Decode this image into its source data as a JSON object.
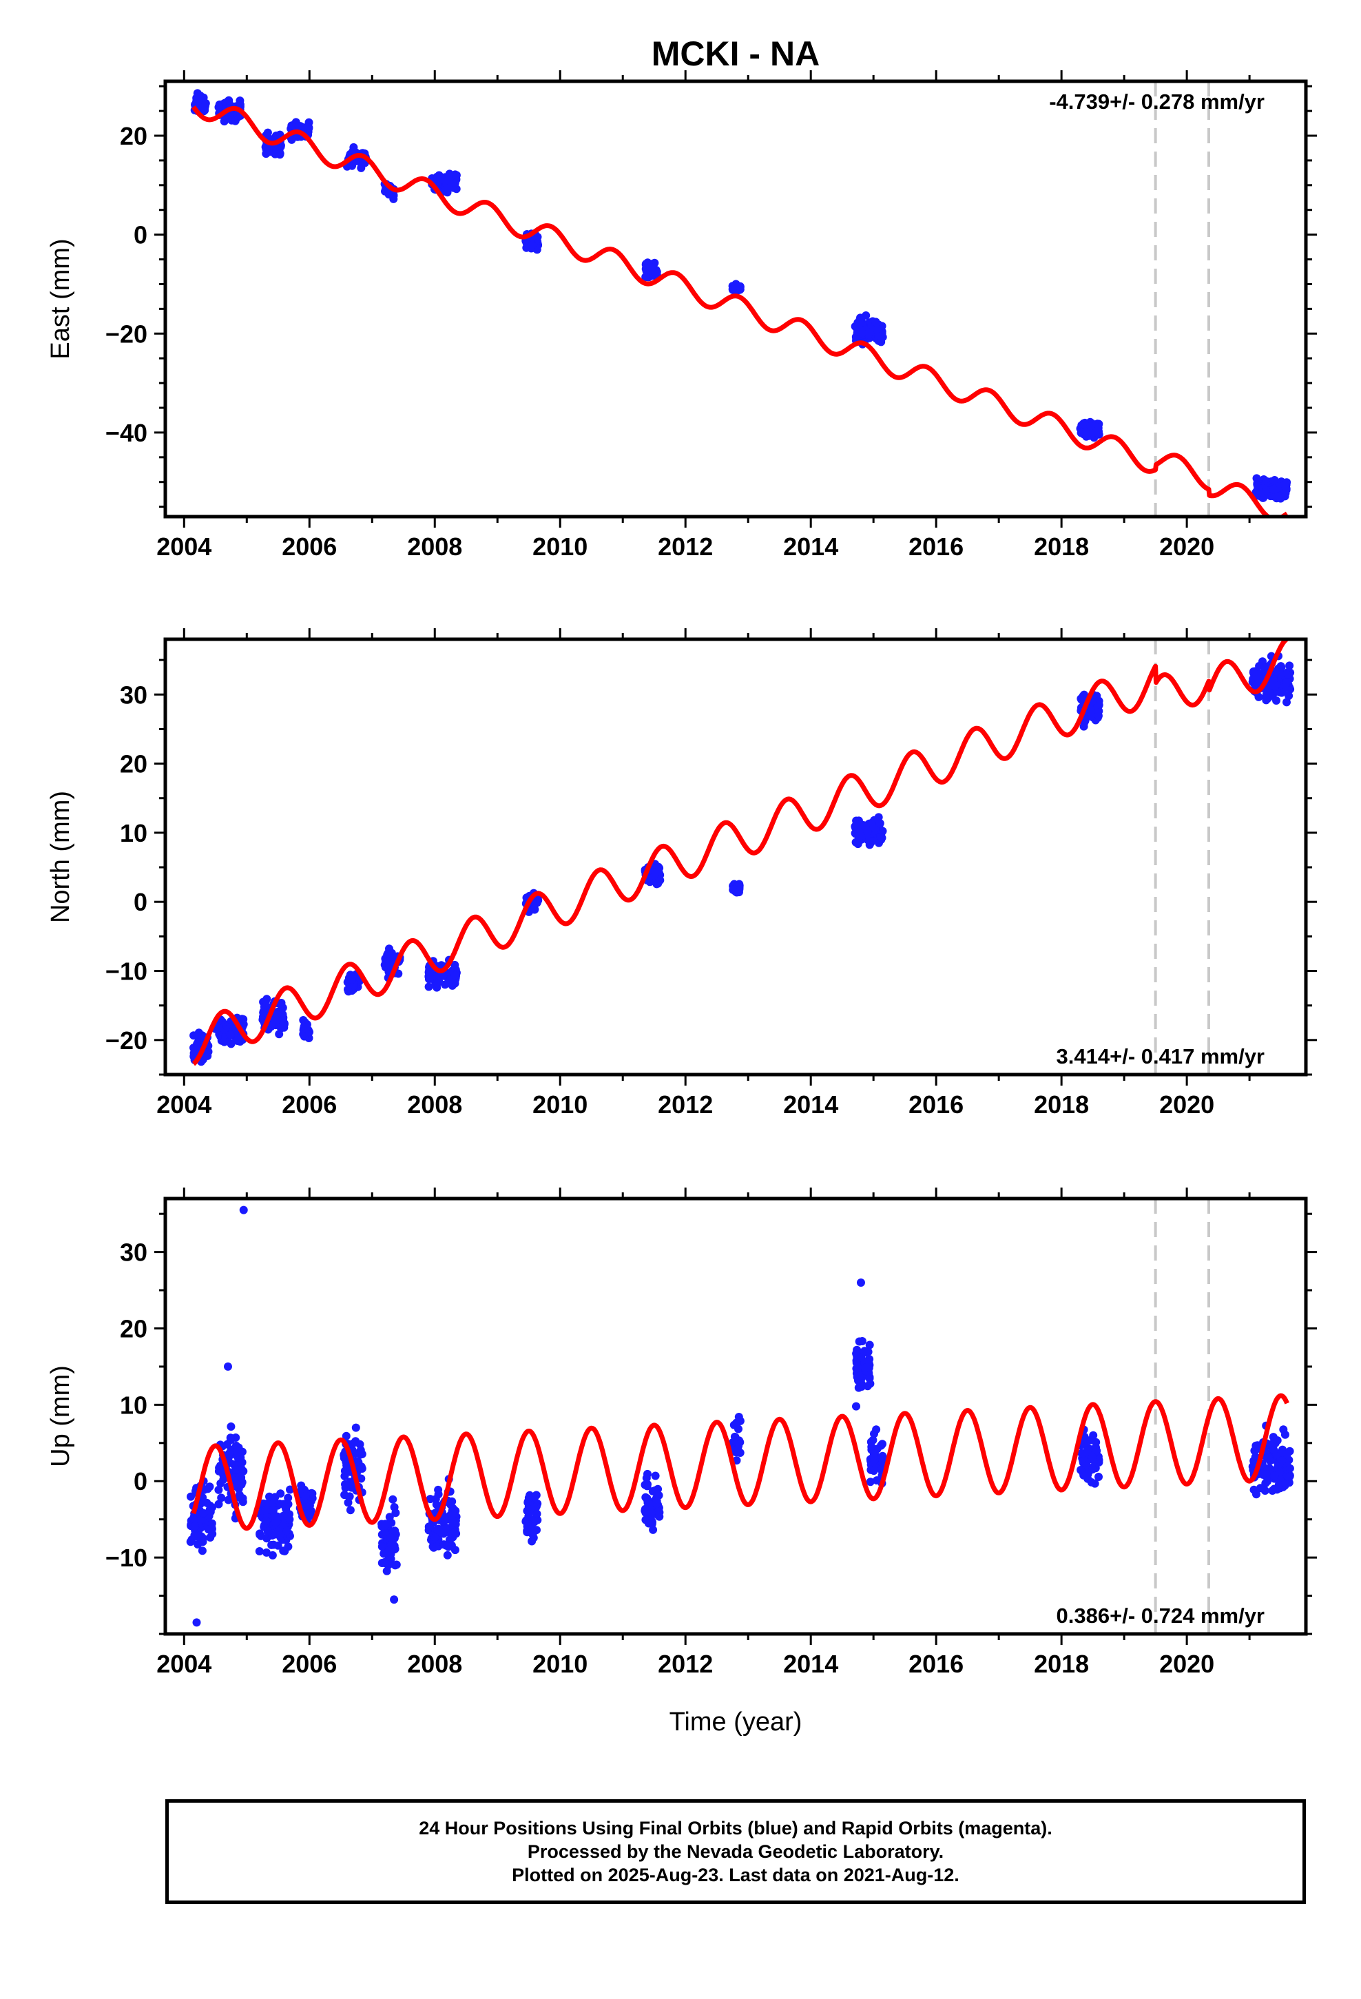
{
  "figure": {
    "title": "MCKI - NA",
    "xlabel": "Time (year)",
    "footer": [
      "24 Hour Positions Using Final Orbits (blue) and Rapid Orbits (magenta).",
      "Processed by the Nevada Geodetic Laboratory.",
      "Plotted on 2025-Aug-23. Last data on 2021-Aug-12."
    ],
    "colors": {
      "data": "#1a1aff",
      "model": "#ff0000",
      "breaks": "#c8c8c8",
      "frame": "#000000"
    }
  },
  "chart_data": [
    {
      "type": "scatter",
      "panel": "east",
      "ylabel": "East (mm)",
      "rate_label": "-4.739+/- 0.278 mm/yr",
      "rate_position": "top-right",
      "xlim": [
        2003.7,
        2021.9
      ],
      "ylim": [
        -57,
        31
      ],
      "xticks": [
        2004,
        2006,
        2008,
        2010,
        2012,
        2014,
        2016,
        2018,
        2020
      ],
      "yticks": [
        -40,
        -20,
        0,
        20
      ],
      "breaks": [
        2019.5,
        2020.35
      ],
      "model": {
        "intercept": 26.5,
        "t0": 2004.15,
        "rate": -4.739,
        "amp": 2.2,
        "phase": 2004.85,
        "offsets": [
          [
            2019.5,
            1.0
          ],
          [
            2020.35,
            -1.2
          ]
        ]
      },
      "campaigns": [
        {
          "t": [
            2004.15,
            2004.35
          ],
          "mean": 26.5,
          "spread": 1.8
        },
        {
          "t": [
            2004.55,
            2004.9
          ],
          "mean": 25.0,
          "spread": 1.8
        },
        {
          "t": [
            2005.3,
            2005.55
          ],
          "mean": 18.5,
          "spread": 2.0
        },
        {
          "t": [
            2005.7,
            2006.0
          ],
          "mean": 21.0,
          "spread": 1.6
        },
        {
          "t": [
            2006.6,
            2006.9
          ],
          "mean": 15.5,
          "spread": 1.6
        },
        {
          "t": [
            2007.2,
            2007.35
          ],
          "mean": 9.0,
          "spread": 1.4
        },
        {
          "t": [
            2007.95,
            2008.35
          ],
          "mean": 10.5,
          "spread": 1.8
        },
        {
          "t": [
            2009.45,
            2009.65
          ],
          "mean": -1.5,
          "spread": 1.5
        },
        {
          "t": [
            2011.35,
            2011.55
          ],
          "mean": -7.5,
          "spread": 1.5
        },
        {
          "t": [
            2012.75,
            2012.88
          ],
          "mean": -11.0,
          "spread": 0.8
        },
        {
          "t": [
            2014.7,
            2015.15
          ],
          "mean": -19.5,
          "spread": 2.5
        },
        {
          "t": [
            2018.3,
            2018.6
          ],
          "mean": -39.5,
          "spread": 1.3
        },
        {
          "t": [
            2021.1,
            2021.6
          ],
          "mean": -51.5,
          "spread": 1.8
        }
      ]
    },
    {
      "type": "scatter",
      "panel": "north",
      "ylabel": "North (mm)",
      "rate_label": "3.414+/- 0.417 mm/yr",
      "rate_position": "bottom-right",
      "xlim": [
        2003.7,
        2021.9
      ],
      "ylim": [
        -25,
        38
      ],
      "xticks": [
        2004,
        2006,
        2008,
        2010,
        2012,
        2014,
        2016,
        2018,
        2020
      ],
      "yticks": [
        -20,
        -10,
        0,
        10,
        20,
        30
      ],
      "breaks": [
        2019.5,
        2020.35
      ],
      "model": {
        "intercept": -20.5,
        "t0": 2004.15,
        "rate": 3.414,
        "amp": 3.0,
        "phase": 2004.62,
        "offsets": [
          [
            2019.5,
            -2.5
          ],
          [
            2020.35,
            -1.5
          ]
        ]
      },
      "campaigns": [
        {
          "t": [
            2004.15,
            2004.4
          ],
          "mean": -21.0,
          "spread": 1.8
        },
        {
          "t": [
            2004.5,
            2004.95
          ],
          "mean": -18.5,
          "spread": 2.0
        },
        {
          "t": [
            2005.25,
            2005.6
          ],
          "mean": -16.5,
          "spread": 2.5
        },
        {
          "t": [
            2005.9,
            2006.0
          ],
          "mean": -18.5,
          "spread": 1.2
        },
        {
          "t": [
            2006.6,
            2006.8
          ],
          "mean": -11.5,
          "spread": 1.5
        },
        {
          "t": [
            2007.2,
            2007.45
          ],
          "mean": -9.0,
          "spread": 1.5
        },
        {
          "t": [
            2007.9,
            2008.35
          ],
          "mean": -10.5,
          "spread": 1.5
        },
        {
          "t": [
            2009.45,
            2009.65
          ],
          "mean": 0.0,
          "spread": 1.2
        },
        {
          "t": [
            2011.35,
            2011.6
          ],
          "mean": 4.0,
          "spread": 1.2
        },
        {
          "t": [
            2012.75,
            2012.88
          ],
          "mean": 2.0,
          "spread": 0.7
        },
        {
          "t": [
            2014.7,
            2015.15
          ],
          "mean": 10.0,
          "spread": 1.8
        },
        {
          "t": [
            2018.3,
            2018.6
          ],
          "mean": 28.0,
          "spread": 2.0
        },
        {
          "t": [
            2021.05,
            2021.65
          ],
          "mean": 32.0,
          "spread": 2.5
        }
      ]
    },
    {
      "type": "scatter",
      "panel": "up",
      "ylabel": "Up (mm)",
      "rate_label": "0.386+/- 0.724 mm/yr",
      "rate_position": "bottom-right",
      "xlim": [
        2003.7,
        2021.9
      ],
      "ylim": [
        -20,
        37
      ],
      "xticks": [
        2004,
        2006,
        2008,
        2010,
        2012,
        2014,
        2016,
        2018,
        2020
      ],
      "yticks": [
        -10,
        0,
        10,
        20,
        30
      ],
      "breaks": [
        2019.5,
        2020.35
      ],
      "model": {
        "intercept": -1.0,
        "t0": 2004.15,
        "rate": 0.386,
        "amp": 5.5,
        "phase": 2004.5,
        "offsets": []
      },
      "campaigns": [
        {
          "t": [
            2004.1,
            2004.45
          ],
          "mean": -4.5,
          "spread": 4.5
        },
        {
          "t": [
            2004.55,
            2004.95
          ],
          "mean": 1.5,
          "spread": 5.0
        },
        {
          "t": [
            2005.2,
            2005.7
          ],
          "mean": -5.5,
          "spread": 3.8
        },
        {
          "t": [
            2005.85,
            2006.05
          ],
          "mean": -2.5,
          "spread": 2.5
        },
        {
          "t": [
            2006.55,
            2006.85
          ],
          "mean": 1.5,
          "spread": 4.0
        },
        {
          "t": [
            2007.15,
            2007.4
          ],
          "mean": -7.5,
          "spread": 4.0
        },
        {
          "t": [
            2007.9,
            2008.35
          ],
          "mean": -5.5,
          "spread": 4.0
        },
        {
          "t": [
            2009.45,
            2009.65
          ],
          "mean": -4.0,
          "spread": 3.5
        },
        {
          "t": [
            2011.35,
            2011.6
          ],
          "mean": -3.0,
          "spread": 3.5
        },
        {
          "t": [
            2012.75,
            2012.88
          ],
          "mean": 5.0,
          "spread": 3.0
        },
        {
          "t": [
            2014.7,
            2014.95
          ],
          "mean": 15.0,
          "spread": 4.5
        },
        {
          "t": [
            2014.95,
            2015.15
          ],
          "mean": 3.0,
          "spread": 3.0
        },
        {
          "t": [
            2018.3,
            2018.6
          ],
          "mean": 3.0,
          "spread": 3.0
        },
        {
          "t": [
            2021.05,
            2021.65
          ],
          "mean": 2.0,
          "spread": 3.5
        }
      ],
      "outliers": [
        [
          2004.95,
          35.5
        ],
        [
          2004.2,
          -18.5
        ],
        [
          2004.7,
          15.0
        ],
        [
          2007.35,
          -15.5
        ],
        [
          2014.8,
          26.0
        ]
      ]
    }
  ]
}
